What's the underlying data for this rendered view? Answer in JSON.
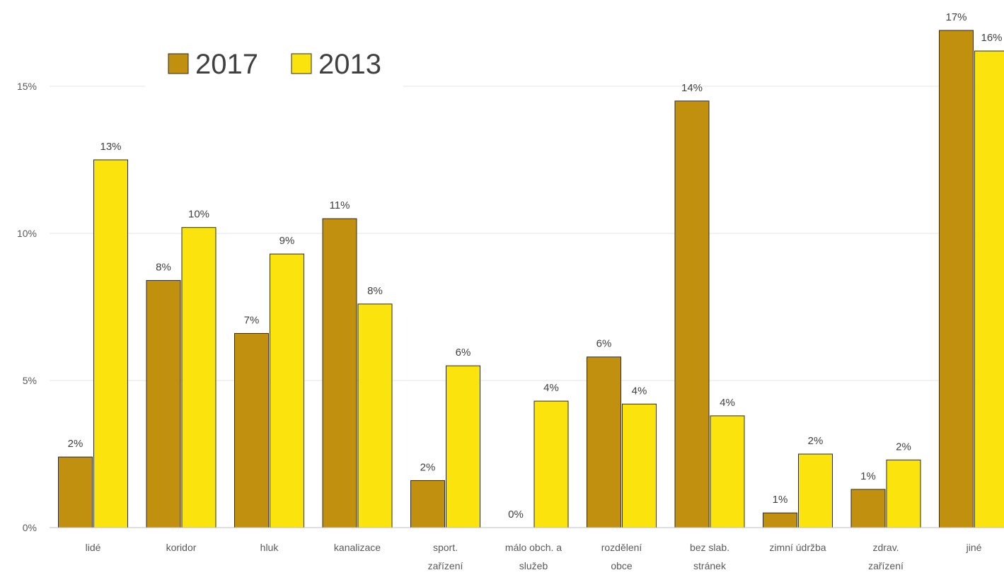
{
  "chart_data": {
    "type": "bar",
    "title": "",
    "xlabel": "",
    "ylabel": "",
    "ylim": [
      0,
      0.17
    ],
    "yticks": [
      {
        "value": 0,
        "label": "0%"
      },
      {
        "value": 0.05,
        "label": "5%"
      },
      {
        "value": 0.1,
        "label": "10%"
      },
      {
        "value": 0.15,
        "label": "15%"
      }
    ],
    "grid": true,
    "legend_position": "top-left",
    "categories": [
      [
        "lidé"
      ],
      [
        "koridor"
      ],
      [
        "hluk"
      ],
      [
        "kanalizace"
      ],
      [
        "sport.",
        "zařízení"
      ],
      [
        "málo obch. a",
        "služeb"
      ],
      [
        "rozdělení",
        "obce"
      ],
      [
        "bez slab.",
        "stránek"
      ],
      [
        "zimní údržba"
      ],
      [
        "zdrav.",
        "zařízení"
      ],
      [
        "jiné"
      ]
    ],
    "series": [
      {
        "name": "2017",
        "color": "#c0900e",
        "values": [
          0.024,
          0.084,
          0.066,
          0.105,
          0.016,
          0.0,
          0.058,
          0.145,
          0.005,
          0.013,
          0.169
        ],
        "labels": [
          "2%",
          "8%",
          "7%",
          "11%",
          "2%",
          "0%",
          "6%",
          "14%",
          "1%",
          "1%",
          "17%"
        ]
      },
      {
        "name": "2013",
        "color": "#fbe40e",
        "values": [
          0.125,
          0.102,
          0.093,
          0.076,
          0.055,
          0.043,
          0.042,
          0.038,
          0.025,
          0.023,
          0.162
        ],
        "labels": [
          "13%",
          "10%",
          "9%",
          "8%",
          "6%",
          "4%",
          "4%",
          "4%",
          "2%",
          "2%",
          "16%"
        ]
      }
    ]
  }
}
